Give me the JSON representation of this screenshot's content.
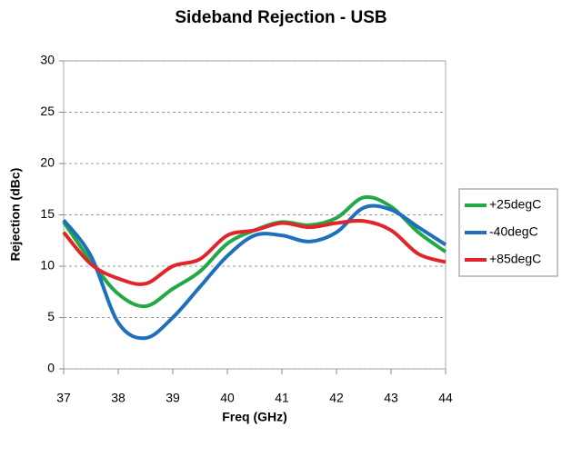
{
  "chart_data": {
    "type": "line",
    "title": "Sideband Rejection - USB",
    "x_label": "Freq (GHz)",
    "y_label": "Rejection (dBc)",
    "x": [
      37,
      37.5,
      38,
      38.5,
      39,
      39.5,
      40,
      40.5,
      41,
      41.5,
      42,
      42.5,
      43,
      43.5,
      44
    ],
    "series": [
      {
        "name": "+25degC",
        "color": "#22a845",
        "values": [
          14.3,
          10.5,
          7.3,
          6.1,
          7.8,
          9.5,
          12.2,
          13.5,
          14.3,
          14.0,
          14.7,
          16.7,
          15.8,
          13.3,
          11.4
        ]
      },
      {
        "name": "-40degC",
        "color": "#1f6fbf",
        "values": [
          14.5,
          11.0,
          4.5,
          3.0,
          5.0,
          8.0,
          11.0,
          13.0,
          13.0,
          12.4,
          13.3,
          15.7,
          15.5,
          13.8,
          12.1
        ]
      },
      {
        "name": "+85degC",
        "color": "#e0262a",
        "values": [
          13.3,
          10.2,
          8.8,
          8.3,
          10.0,
          10.7,
          13.0,
          13.5,
          14.2,
          13.8,
          14.2,
          14.4,
          13.5,
          11.2,
          10.4
        ]
      }
    ],
    "xlim": [
      37,
      44
    ],
    "xticks": [
      37,
      38,
      39,
      40,
      41,
      42,
      43,
      44
    ],
    "ylim": [
      0,
      30
    ],
    "yticks": [
      0,
      5,
      10,
      15,
      20,
      25,
      30
    ],
    "grid": true,
    "legend": "right"
  }
}
